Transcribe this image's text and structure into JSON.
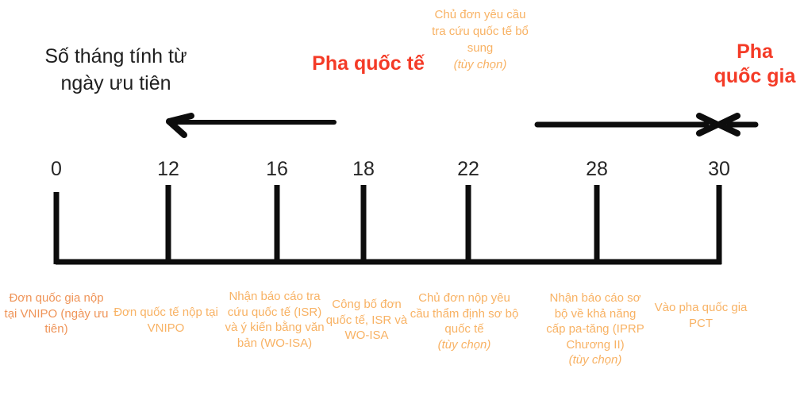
{
  "colors": {
    "phase_red": "#f43b27",
    "orange_light": "#f8b264",
    "orange_deep": "#ef9458",
    "ink": "#1f1f1f",
    "stroke_black": "#0d0d0d"
  },
  "axis_title": "Số tháng tính từ\nngày ưu tiên",
  "phases": {
    "international": "Pha quốc tế",
    "national": "Pha\nquốc gia"
  },
  "annotation_top": {
    "text": "Chủ đơn yêu cầu tra cứu quốc tế bổ sung",
    "note": "(tùy chọn)"
  },
  "timeline": {
    "months": [
      "0",
      "12",
      "16",
      "18",
      "22",
      "28",
      "30"
    ],
    "events": [
      {
        "month": "0",
        "text": "Đơn quốc gia nộp tại VNIPO (ngày ưu tiên)",
        "note": "",
        "color": "#ef9458"
      },
      {
        "month": "12",
        "text": "Đơn quốc tế nộp tại VNIPO",
        "note": "",
        "color": "#f8b264"
      },
      {
        "month": "16",
        "text": "Nhận báo cáo tra cứu quốc tế (ISR) và ý kiến bằng văn bản (WO-ISA)",
        "note": "",
        "color": "#f8b264"
      },
      {
        "month": "18",
        "text": "Công bố đơn quốc tế, ISR và WO-ISA",
        "note": "",
        "color": "#f8b264"
      },
      {
        "month": "22",
        "text": "Chủ đơn nộp yêu cầu thẩm định sơ bộ quốc tế",
        "note": "(tùy chọn)",
        "color": "#f8b264"
      },
      {
        "month": "28",
        "text": "Nhận báo cáo sơ bộ về khả năng cấp pa-tăng (IPRP Chương II)",
        "note": "(tùy chọn)",
        "color": "#f8b264"
      },
      {
        "month": "30",
        "text": "Vào pha quốc gia PCT",
        "note": "",
        "color": "#f8b264"
      }
    ]
  }
}
